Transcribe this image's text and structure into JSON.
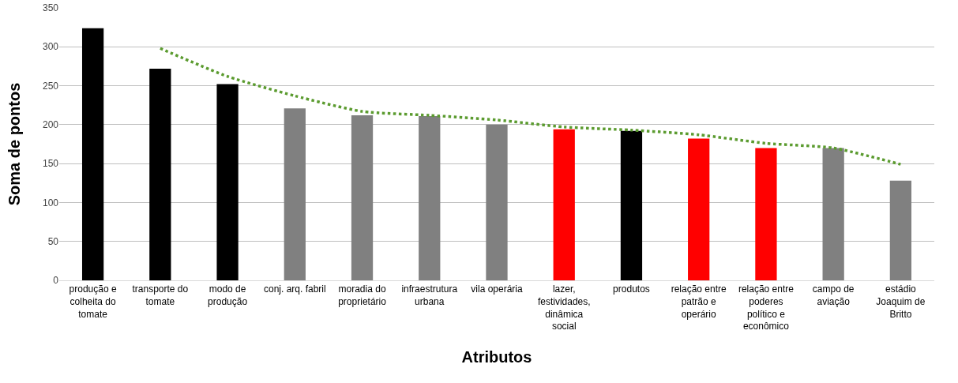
{
  "chart_data": {
    "type": "bar",
    "xlabel": "Atributos",
    "ylabel": "Soma de pontos",
    "categories": [
      "produção e\ncolheita do\ntomate",
      "transporte do\ntomate",
      "modo de\nprodução",
      "conj. arq. fabril",
      "moradia do\nproprietário",
      "infraestrutura\nurbana",
      "vila operária",
      "lazer,\nfestividades,\ndinâmica\nsocial",
      "produtos",
      "relação entre\npatrão e\noperário",
      "relação entre\npoderes\npolítico e\neconômico",
      "campo de\naviação",
      "estádio\nJoaquim de\nBritto"
    ],
    "series": [
      {
        "colors": [
          "#000000",
          "#000000",
          "#000000",
          "#808080",
          "#808080",
          "#808080",
          "#808080",
          "#ff0000",
          "#000000",
          "#ff0000",
          "#ff0000",
          "#808080",
          "#808080"
        ],
        "values": [
          324,
          272,
          252,
          221,
          212,
          211,
          200,
          194,
          192,
          182,
          170,
          170,
          128
        ]
      },
      {
        "type": "line",
        "color": "#5b9b2f",
        "line_style": "dotted",
        "marker": "none",
        "values": [
          null,
          298,
          262,
          237,
          217,
          212,
          206,
          197,
          193,
          187,
          176,
          170,
          149
        ]
      }
    ],
    "ylim": [
      0,
      350
    ],
    "yticks": [
      0,
      50,
      100,
      150,
      200,
      250,
      300,
      350
    ],
    "grid": "y"
  }
}
